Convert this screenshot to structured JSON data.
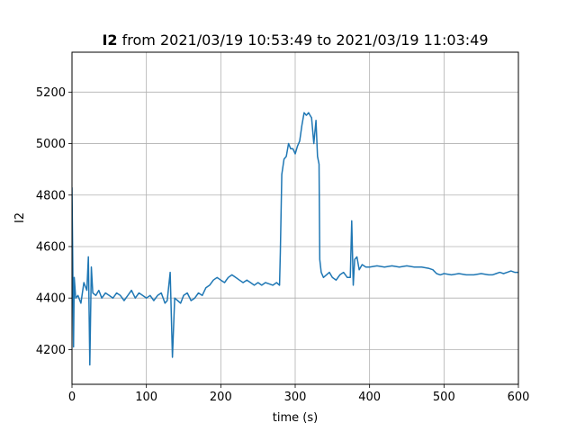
{
  "chart_data": {
    "type": "line",
    "title": {
      "variable": "I2",
      "rest": " from 2021/03/19 10:53:49 to 2021/03/19 11:03:49"
    },
    "xlabel": "time (s)",
    "ylabel": "I2",
    "xlim": [
      0,
      600
    ],
    "ylim": [
      4065,
      5355
    ],
    "grid": true,
    "series_color": "#1f77b4",
    "x_ticks": [
      {
        "value": 0,
        "label": "0"
      },
      {
        "value": 100,
        "label": "100"
      },
      {
        "value": 200,
        "label": "200"
      },
      {
        "value": 300,
        "label": "300"
      },
      {
        "value": 400,
        "label": "400"
      },
      {
        "value": 500,
        "label": "500"
      },
      {
        "value": 600,
        "label": "600"
      }
    ],
    "y_ticks": [
      {
        "value": 4200,
        "label": "4200"
      },
      {
        "value": 4400,
        "label": "4400"
      },
      {
        "value": 4600,
        "label": "4600"
      },
      {
        "value": 4800,
        "label": "4800"
      },
      {
        "value": 5000,
        "label": "5000"
      },
      {
        "value": 5200,
        "label": "5200"
      }
    ],
    "series": [
      {
        "x": [
          0,
          1,
          2,
          3,
          5,
          8,
          12,
          16,
          20,
          22,
          24,
          26,
          28,
          32,
          36,
          40,
          45,
          50,
          55,
          60,
          65,
          70,
          75,
          80,
          85,
          90,
          95,
          100,
          105,
          110,
          115,
          120,
          125,
          128,
          132,
          135,
          138,
          142,
          146,
          150,
          155,
          160,
          165,
          170,
          175,
          180,
          185,
          190,
          195,
          200,
          205,
          210,
          215,
          220,
          225,
          230,
          235,
          240,
          245,
          250,
          255,
          260,
          265,
          270,
          275,
          279,
          280,
          282,
          285,
          288,
          291,
          294,
          297,
          300,
          303,
          306,
          309,
          312,
          315,
          318,
          320,
          322,
          325,
          328,
          330,
          332,
          333,
          335,
          338,
          342,
          346,
          350,
          355,
          360,
          365,
          370,
          374,
          376,
          378,
          380,
          383,
          386,
          390,
          395,
          400,
          410,
          420,
          430,
          440,
          450,
          460,
          470,
          480,
          485,
          490,
          495,
          500,
          510,
          520,
          530,
          540,
          550,
          560,
          565,
          570,
          575,
          580,
          585,
          590,
          595,
          600
        ],
        "y": [
          4830,
          4560,
          4210,
          4480,
          4400,
          4410,
          4380,
          4460,
          4430,
          4560,
          4140,
          4520,
          4420,
          4410,
          4430,
          4400,
          4420,
          4410,
          4400,
          4420,
          4410,
          4390,
          4410,
          4430,
          4400,
          4420,
          4410,
          4400,
          4410,
          4390,
          4410,
          4420,
          4380,
          4390,
          4500,
          4170,
          4400,
          4390,
          4380,
          4410,
          4420,
          4390,
          4400,
          4420,
          4410,
          4440,
          4450,
          4470,
          4480,
          4470,
          4460,
          4480,
          4490,
          4480,
          4470,
          4460,
          4470,
          4460,
          4450,
          4460,
          4450,
          4460,
          4455,
          4450,
          4460,
          4450,
          4580,
          4880,
          4940,
          4950,
          5000,
          4980,
          4980,
          4960,
          4990,
          5010,
          5070,
          5120,
          5110,
          5120,
          5110,
          5100,
          5000,
          5090,
          4950,
          4920,
          4550,
          4500,
          4480,
          4490,
          4500,
          4480,
          4470,
          4490,
          4500,
          4480,
          4480,
          4700,
          4450,
          4550,
          4560,
          4510,
          4530,
          4520,
          4520,
          4525,
          4520,
          4525,
          4520,
          4525,
          4520,
          4520,
          4515,
          4510,
          4495,
          4490,
          4495,
          4490,
          4495,
          4490,
          4490,
          4495,
          4490,
          4490,
          4495,
          4500,
          4495,
          4500,
          4505,
          4500,
          4500
        ]
      }
    ]
  }
}
